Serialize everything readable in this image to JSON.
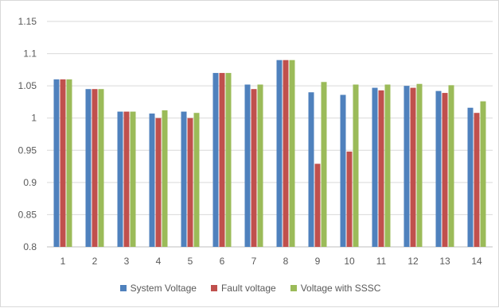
{
  "chart_data": {
    "type": "bar",
    "title": "",
    "xlabel": "",
    "ylabel": "",
    "categories": [
      "1",
      "2",
      "3",
      "4",
      "5",
      "6",
      "7",
      "8",
      "9",
      "10",
      "11",
      "12",
      "13",
      "14"
    ],
    "ylim": [
      0.8,
      1.15
    ],
    "yticks": [
      "0.8",
      "0.85",
      "0.9",
      "0.95",
      "1",
      "1.05",
      "1.1",
      "1.15"
    ],
    "grid": true,
    "legend_position": "bottom",
    "series": [
      {
        "name": "System Voltage",
        "color": "#4f81bd",
        "values": [
          1.06,
          1.045,
          1.01,
          1.007,
          1.01,
          1.07,
          1.052,
          1.09,
          1.04,
          1.036,
          1.047,
          1.05,
          1.042,
          1.016
        ]
      },
      {
        "name": "Fault voltage",
        "color": "#c0504d",
        "values": [
          1.06,
          1.045,
          1.01,
          1.0,
          1.0,
          1.07,
          1.045,
          1.09,
          0.929,
          0.948,
          1.043,
          1.047,
          1.039,
          1.008
        ]
      },
      {
        "name": "Voltage with SSSC",
        "color": "#9bbb59",
        "values": [
          1.06,
          1.045,
          1.01,
          1.012,
          1.008,
          1.07,
          1.052,
          1.09,
          1.056,
          1.052,
          1.052,
          1.053,
          1.051,
          1.026
        ]
      }
    ]
  }
}
